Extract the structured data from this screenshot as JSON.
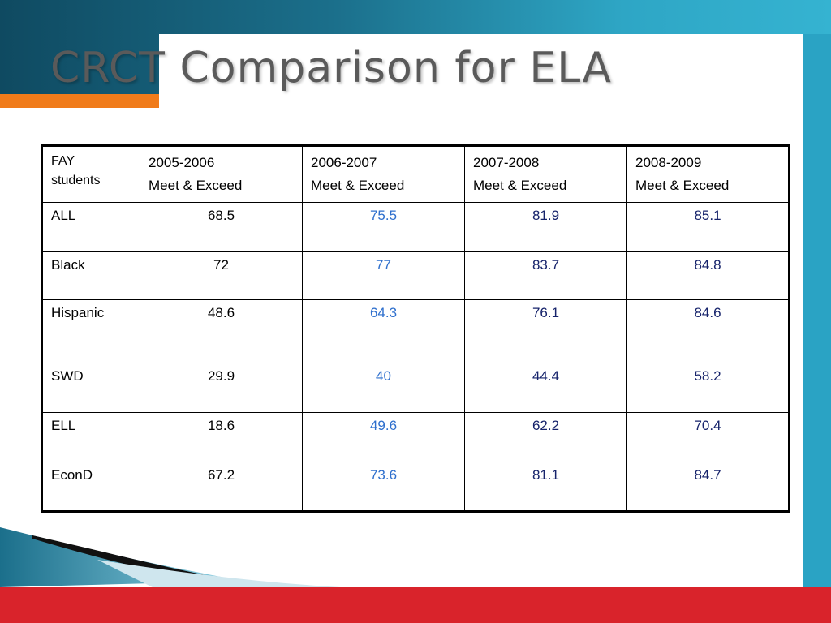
{
  "slide": {
    "title": "CRCT Comparison for ELA"
  },
  "colors": {
    "accent_orange": "#f07b1a",
    "accent_red": "#d9232b",
    "accent_teal": "#2aa3c4",
    "value_blue": "#2e6fcd",
    "value_navy": "#16236b"
  },
  "table": {
    "headers": [
      {
        "line1": "FAY",
        "line2": "students"
      },
      {
        "line1": "2005-2006",
        "line2": "Meet & Exceed"
      },
      {
        "line1": "2006-2007",
        "line2": "Meet & Exceed"
      },
      {
        "line1": "2007-2008",
        "line2": "Meet & Exceed"
      },
      {
        "line1": "2008-2009",
        "line2": "Meet & Exceed"
      }
    ],
    "rows": [
      {
        "group": "ALL",
        "y2006": "68.5",
        "y2007": "75.5",
        "y2008": "81.9",
        "y2009": "85.1"
      },
      {
        "group": "Black",
        "y2006": "72",
        "y2007": "77",
        "y2008": "83.7",
        "y2009": "84.8"
      },
      {
        "group": "Hispanic",
        "y2006": "48.6",
        "y2007": "64.3",
        "y2008": "76.1",
        "y2009": "84.6"
      },
      {
        "group": "SWD",
        "y2006": "29.9",
        "y2007": "40",
        "y2008": "44.4",
        "y2009": "58.2"
      },
      {
        "group": "ELL",
        "y2006": "18.6",
        "y2007": "49.6",
        "y2008": "62.2",
        "y2009": "70.4"
      },
      {
        "group": "EconD",
        "y2006": "67.2",
        "y2007": "73.6",
        "y2008": "81.1",
        "y2009": "84.7"
      }
    ]
  }
}
